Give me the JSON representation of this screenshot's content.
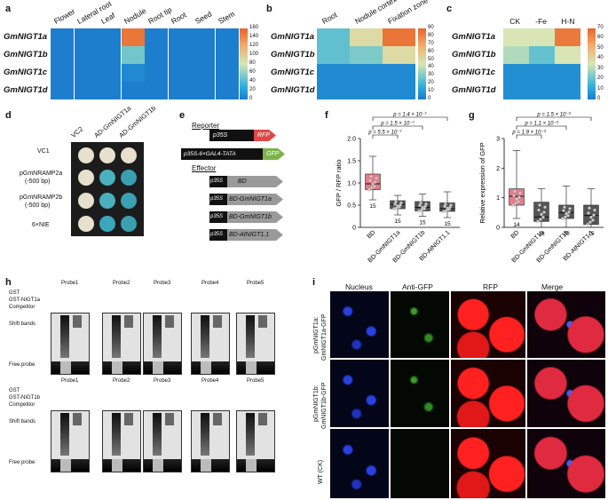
{
  "panels": {
    "a": {
      "letter": "a",
      "genes": [
        "GmNIGT1a",
        "GmNIGT1b",
        "GmNIGT1c",
        "GmNIGT1d"
      ],
      "columns": [
        "Flower",
        "Lateral root",
        "Leaf",
        "Nodule",
        "Root tip",
        "Root",
        "Seed",
        "Stem"
      ],
      "colorbar_ticks": [
        "160",
        "140",
        "120",
        "100",
        "80",
        "60",
        "40",
        "20",
        "0"
      ],
      "values": [
        [
          2,
          2,
          2,
          150,
          2,
          2,
          2,
          2
        ],
        [
          2,
          2,
          2,
          50,
          2,
          2,
          2,
          2
        ],
        [
          2,
          2,
          2,
          8,
          2,
          2,
          2,
          2
        ],
        [
          2,
          2,
          2,
          2,
          2,
          2,
          2,
          2
        ]
      ]
    },
    "b": {
      "letter": "b",
      "genes": [
        "GmNIGT1a",
        "GmNIGT1b",
        "GmNIGT1c",
        "GmNIGT1d"
      ],
      "columns": [
        "Root",
        "Nodule cortex",
        "Fixation zone"
      ],
      "colorbar_ticks": [
        "90",
        "80",
        "70",
        "60",
        "50",
        "40",
        "30",
        "20",
        "10",
        "0"
      ],
      "values": [
        [
          25,
          50,
          85
        ],
        [
          25,
          30,
          50
        ],
        [
          5,
          5,
          5
        ],
        [
          5,
          5,
          5
        ]
      ]
    },
    "c": {
      "letter": "c",
      "genes": [
        "GmNIGT1a",
        "GmNIGT1b",
        "GmNIGT1c",
        "GmNIGT1d"
      ],
      "columns": [
        "CK",
        "-Fe",
        "H-N"
      ],
      "colorbar_ticks": [
        "70",
        "60",
        "50",
        "40",
        "30",
        "20",
        "10",
        "0"
      ],
      "values": [
        [
          35,
          35,
          65
        ],
        [
          30,
          20,
          35
        ],
        [
          5,
          5,
          5
        ],
        [
          5,
          5,
          5
        ]
      ]
    },
    "d": {
      "letter": "d",
      "columns": [
        "VC2",
        "AD-GmNIGT1a",
        "AD-GmNIGT1b"
      ],
      "rows": [
        "VC1",
        "pGmNRAMP2a\n(-500 bp)",
        "pGmNRAMP2b\n(-500 bp)",
        "6×NIE"
      ],
      "row1": "VC1",
      "row2a": "pGmNRAMP2a",
      "row2b": "(-500 bp)",
      "row3a": "pGmNRAMP2b",
      "row3b": "(-500 bp)",
      "row4": "6×NIE"
    },
    "e": {
      "letter": "e",
      "reporter": "Reporter",
      "effector": "Effector",
      "p35s": "p35S",
      "rfp": "RFP",
      "gal4": "p35S-6×GAL4-TATA",
      "gfp": "GFP",
      "bd": "BD",
      "bd1a": "BD-GmNIGT1a",
      "bd1b": "BD-GmNIGT1b",
      "bdat": "BD-AtNIGT1.1"
    },
    "f": {
      "letter": "f",
      "ylabel": "GFP / RFP ratio",
      "pvals": [
        "p = 1.4 × 10⁻⁷",
        "p = 1.5 × 10⁻⁷",
        "p = 5.5 × 10⁻⁷"
      ]
    },
    "g": {
      "letter": "g",
      "ylabel": "Relative expression of GFP",
      "pvals": [
        "p = 1.5 × 10⁻³",
        "p = 1.1 × 10⁻³",
        "p = 1.9 × 10⁻³"
      ]
    },
    "h": {
      "letter": "h",
      "probes": [
        "Probe1",
        "Probe2",
        "Probe3",
        "Probe4",
        "Probe5"
      ],
      "gst": "GST",
      "gst1a": "GST-NIGT1a",
      "gst1b": "GST-NIGT1b",
      "competitor": "Competitor",
      "shift": "Shift bands",
      "free": "Free probe"
    },
    "i": {
      "letter": "i",
      "columns": [
        "Nucleus",
        "Anti-GFP",
        "RFP",
        "Merge"
      ],
      "row1a": "pGmNIGT1a:",
      "row1b": "GmNIGT1a-GFP",
      "row2a": "pGmNIGT1b:",
      "row2b": "GmNIGT1b-GFP",
      "row3": "WT (CK)"
    }
  },
  "chart_data": [
    {
      "type": "box",
      "panel": "f",
      "ylabel": "GFP / RFP ratio",
      "ylim": [
        0,
        2.0
      ],
      "yticks": [
        "0",
        "0.5",
        "1.0",
        "1.5",
        "2.0"
      ],
      "categories": [
        "BD",
        "BD-GmNIGT1a",
        "BD-GmNIGT1b",
        "BD-AtNIGT1.1"
      ],
      "n": [
        "15",
        "15",
        "15",
        "15"
      ],
      "boxes": [
        {
          "min": 0.62,
          "q1": 0.85,
          "median": 0.98,
          "q3": 1.2,
          "max": 1.6
        },
        {
          "min": 0.28,
          "q1": 0.42,
          "median": 0.52,
          "q3": 0.6,
          "max": 0.72
        },
        {
          "min": 0.25,
          "q1": 0.37,
          "median": 0.45,
          "q3": 0.58,
          "max": 0.75
        },
        {
          "min": 0.22,
          "q1": 0.36,
          "median": 0.42,
          "q3": 0.55,
          "max": 0.8
        }
      ],
      "colors": [
        "#e87b86",
        "#555555",
        "#555555",
        "#555555"
      ]
    },
    {
      "type": "box",
      "panel": "g",
      "ylabel": "Relative expression of GFP",
      "ylim": [
        0,
        3
      ],
      "yticks": [
        "0",
        "1",
        "2",
        "3"
      ],
      "categories": [
        "BD",
        "BD-GmNIGT1a",
        "BD-GmNIGT1b",
        "BD-AtNIGT1.1"
      ],
      "n": [
        "14",
        "18",
        "20",
        "15"
      ],
      "boxes": [
        {
          "min": 0.3,
          "q1": 0.75,
          "median": 1.05,
          "q3": 1.3,
          "max": 2.6
        },
        {
          "min": 0.0,
          "q1": 0.2,
          "median": 0.35,
          "q3": 0.85,
          "max": 1.3
        },
        {
          "min": 0.0,
          "q1": 0.3,
          "median": 0.5,
          "q3": 0.75,
          "max": 1.4
        },
        {
          "min": 0.0,
          "q1": 0.1,
          "median": 0.4,
          "q3": 0.75,
          "max": 1.3
        }
      ],
      "colors": [
        "#e87b86",
        "#555555",
        "#555555",
        "#555555"
      ]
    }
  ]
}
